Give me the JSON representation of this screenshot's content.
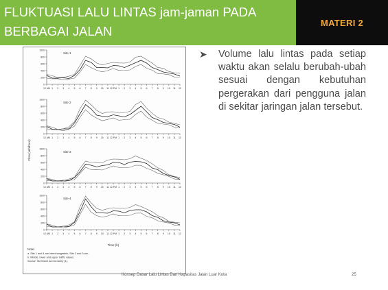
{
  "header": {
    "title": "FLUKTUASI LALU LINTAS jam-jaman PADA BERBAGAI JALAN",
    "badge": "MATERI 2",
    "colors": {
      "title_bg": "#7fbc41",
      "badge_bg": "#0d0d0d",
      "badge_text": "#f2a93b"
    }
  },
  "figure": {
    "ylabel": "Flow (veh/hour)",
    "xlabel": "Time (h)",
    "sites": [
      "Site 1",
      "Site 2",
      "Site 3",
      "Site 4"
    ],
    "hour_ticks": [
      "12 AM",
      "1",
      "2",
      "3",
      "4",
      "5",
      "6",
      "7",
      "8",
      "9",
      "10",
      "11",
      "12 PM",
      "1",
      "2",
      "3",
      "4",
      "5",
      "6",
      "7",
      "8",
      "9",
      "10",
      "11",
      "12"
    ],
    "y_ticks": {
      "site1": [
        "1000",
        "800",
        "600",
        "400",
        "200",
        "0"
      ],
      "site2": [
        "1000",
        "800",
        "600",
        "400",
        "200",
        "0"
      ],
      "site3": [
        "1000",
        "800",
        "600",
        "400",
        "200",
        "0"
      ],
      "site4": [
        "1000",
        "800",
        "600",
        "400",
        "200",
        "0"
      ]
    },
    "note_label": "Note:",
    "note_lines": [
      "a. Site 1 and 4 are interchangeable, Site 2 and 3 are...",
      "b. Middle, lower and upper traffic values.",
      "Source: McShane and Crowley (1)."
    ]
  },
  "bullet": {
    "icon": "arrow-bullet-icon",
    "text": "Volume lalu lintas pada setiap waktu akan selalu berubah-ubah sesuai dengan kebutuhan pergerakan dari pengguna jalan di sekitar jaringan jalan tersebut."
  },
  "footer": {
    "text": "Konsep Dasar Lalu Lintas Dan Kapasitas Jalan Luar Kota",
    "page": "25"
  }
}
